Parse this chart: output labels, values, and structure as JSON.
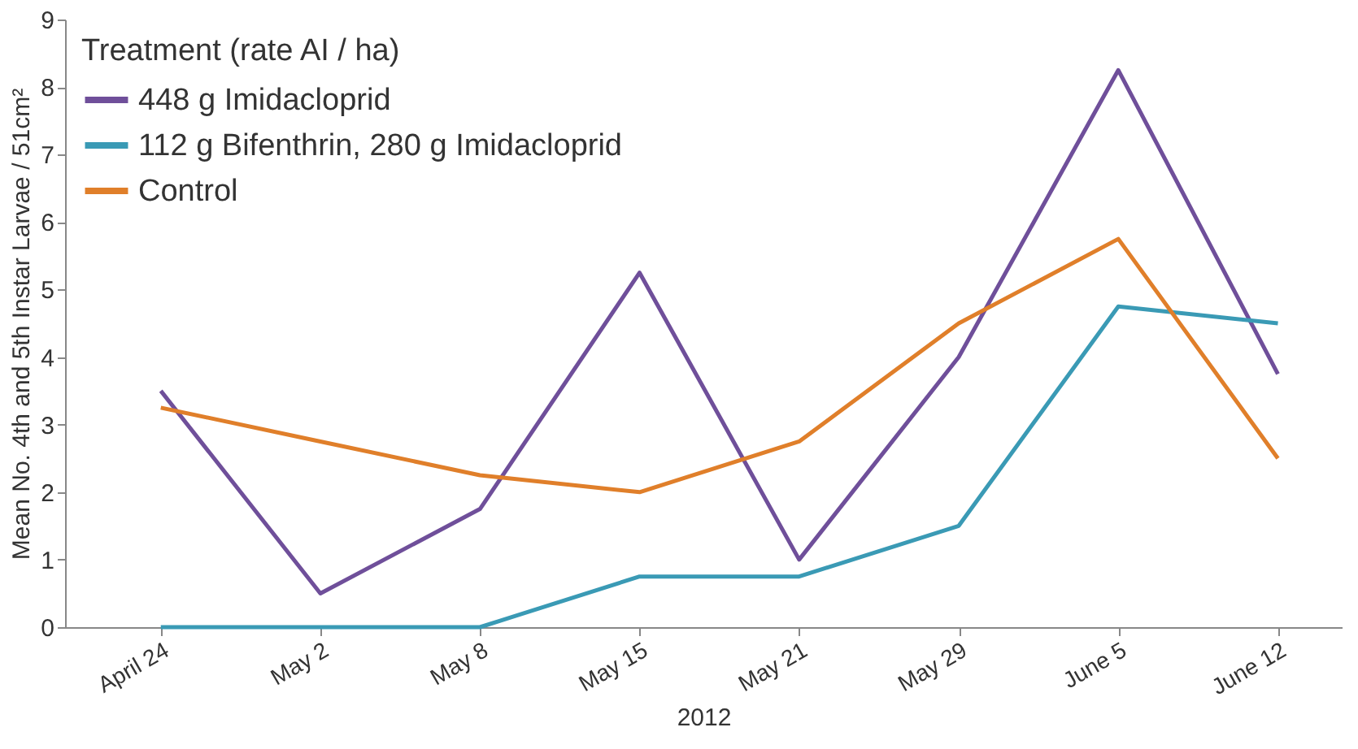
{
  "chart_data": {
    "type": "line",
    "xlabel": "2012",
    "ylabel": "Mean No. 4th and 5th Instar Larvae / 51cm²",
    "legend_title": "Treatment (rate AI / ha)",
    "categories": [
      "April 24",
      "May 2",
      "May 8",
      "May 15",
      "May 21",
      "May 29",
      "June 5",
      "June 12"
    ],
    "series": [
      {
        "name": "448 g Imidacloprid",
        "color": "#6f4f9a",
        "values": [
          3.5,
          0.5,
          1.75,
          5.25,
          1.0,
          4.0,
          8.25,
          3.75
        ]
      },
      {
        "name": "112 g Bifenthrin, 280 g Imidacloprid",
        "color": "#3a9ab5",
        "values": [
          0,
          0,
          0,
          0.75,
          0.75,
          1.5,
          4.75,
          4.5
        ]
      },
      {
        "name": "Control",
        "color": "#e07f2a",
        "values": [
          3.25,
          2.75,
          2.25,
          2.0,
          2.75,
          4.5,
          5.75,
          2.5
        ]
      }
    ],
    "ylim": [
      0,
      9
    ],
    "yticks": [
      0,
      1,
      2,
      3,
      4,
      5,
      6,
      7,
      8,
      9
    ],
    "grid": false,
    "legend": "top left",
    "marker": "none",
    "line_style": "solid"
  }
}
